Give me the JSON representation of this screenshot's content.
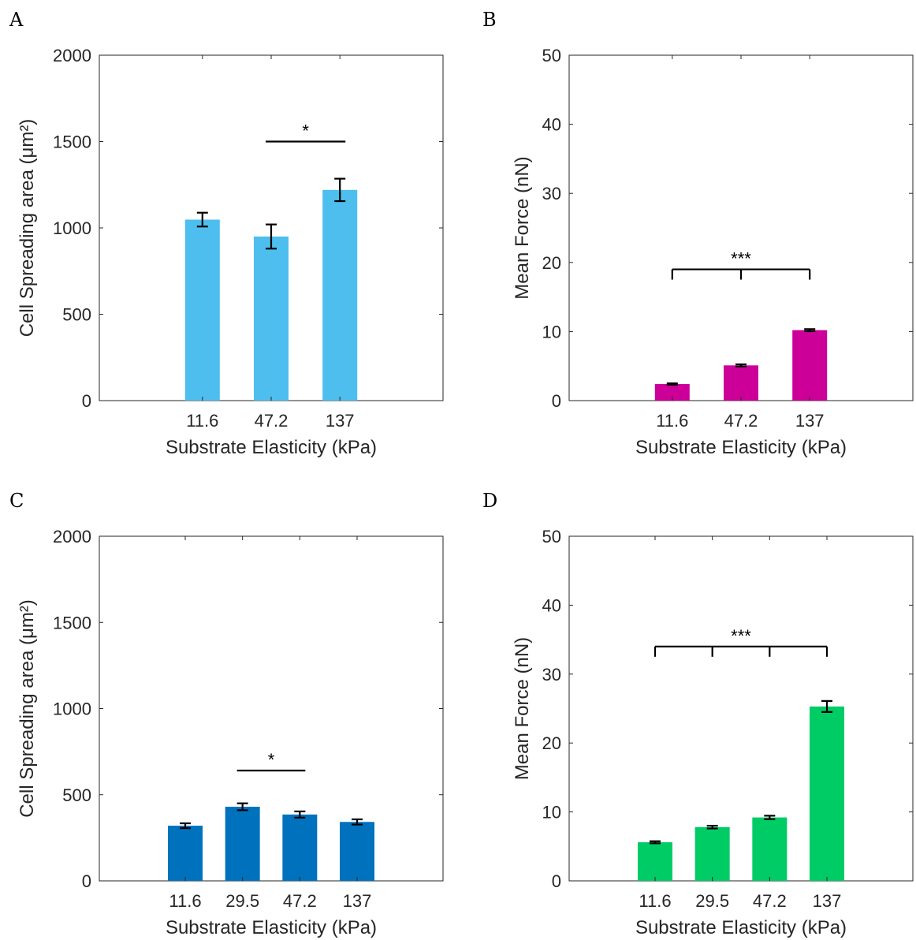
{
  "chart_data": [
    {
      "panel": "A",
      "type": "bar",
      "categories": [
        "11.6",
        "47.2",
        "137"
      ],
      "values": [
        1048,
        950,
        1220
      ],
      "errors": [
        40,
        70,
        65
      ],
      "color": "#4DBEEE",
      "xlabel": "Substrate Elasticity (kPa)",
      "ylabel": "Cell Spreading area (μm²)",
      "ylim": [
        0,
        2000
      ],
      "yticks": [
        0,
        500,
        1000,
        1500,
        2000
      ],
      "grid": false,
      "significance": [
        {
          "from": 1,
          "to": 2,
          "y": 1500,
          "label": "*",
          "style": "line"
        }
      ]
    },
    {
      "panel": "B",
      "type": "bar",
      "categories": [
        "11.6",
        "47.2",
        "137"
      ],
      "values": [
        2.4,
        5.1,
        10.2
      ],
      "errors": [
        0.1,
        0.15,
        0.15
      ],
      "color": "#CC0099",
      "xlabel": "Substrate Elasticity (kPa)",
      "ylabel": "Mean Force (nN)",
      "ylim": [
        0,
        50
      ],
      "yticks": [
        0,
        10,
        20,
        30,
        40,
        50
      ],
      "grid": false,
      "significance": [
        {
          "from": 0,
          "to": 2,
          "y": 19,
          "label": "***",
          "style": "bracket"
        }
      ]
    },
    {
      "panel": "C",
      "type": "bar",
      "categories": [
        "11.6",
        "29.5",
        "47.2",
        "137"
      ],
      "values": [
        320,
        430,
        385,
        342
      ],
      "errors": [
        14,
        20,
        18,
        15
      ],
      "color": "#0072BD",
      "xlabel": "Substrate Elasticity (kPa)",
      "ylabel": "Cell Spreading area (μm²)",
      "ylim": [
        0,
        2000
      ],
      "yticks": [
        0,
        500,
        1000,
        1500,
        2000
      ],
      "grid": false,
      "significance": [
        {
          "from": 1,
          "to": 2,
          "y": 640,
          "label": "*",
          "style": "line"
        }
      ]
    },
    {
      "panel": "D",
      "type": "bar",
      "categories": [
        "11.6",
        "29.5",
        "47.2",
        "137"
      ],
      "values": [
        5.6,
        7.8,
        9.2,
        25.3
      ],
      "errors": [
        0.15,
        0.2,
        0.25,
        0.8
      ],
      "color": "#00CC66",
      "xlabel": "Substrate Elasticity (kPa)",
      "ylabel": "Mean Force (nN)",
      "ylim": [
        0,
        50
      ],
      "yticks": [
        0,
        10,
        20,
        30,
        40,
        50
      ],
      "grid": false,
      "significance": [
        {
          "from": 0,
          "to": 3,
          "y": 34,
          "label": "***",
          "style": "bracket"
        }
      ]
    }
  ]
}
